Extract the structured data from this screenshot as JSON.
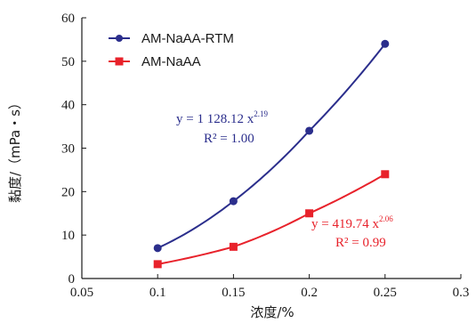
{
  "chart_data": {
    "type": "line",
    "xlabel": "浓度/%",
    "ylabel": "黏度/（mPa・s）",
    "xlim": [
      0.05,
      0.3
    ],
    "ylim": [
      0,
      60
    ],
    "x_ticks": [
      "0.05",
      "0.1",
      "0.15",
      "0.2",
      "0.25",
      "0.3"
    ],
    "y_ticks": [
      "0",
      "10",
      "20",
      "30",
      "40",
      "50",
      "60"
    ],
    "grid": false,
    "legend_position": "top-left",
    "series": [
      {
        "name": "AM-NaAA-RTM",
        "color": "#2b2e8c",
        "marker": "circle",
        "x": [
          0.1,
          0.15,
          0.2,
          0.25
        ],
        "y": [
          7.0,
          17.8,
          34.0,
          54.0
        ],
        "fit": {
          "a": 1128.12,
          "b": 2.19
        },
        "equation": {
          "lhs": "y = 1 128.12 x",
          "exponent": "2.19",
          "r2": "R² = 1.00"
        }
      },
      {
        "name": "AM-NaAA",
        "color": "#e8222b",
        "marker": "square",
        "x": [
          0.1,
          0.15,
          0.2,
          0.25
        ],
        "y": [
          3.3,
          7.3,
          15.0,
          24.0
        ],
        "fit": {
          "a": 419.74,
          "b": 2.06
        },
        "equation": {
          "lhs": "y = 419.74 x",
          "exponent": "2.06",
          "r2": "R² = 0.99"
        }
      }
    ]
  }
}
